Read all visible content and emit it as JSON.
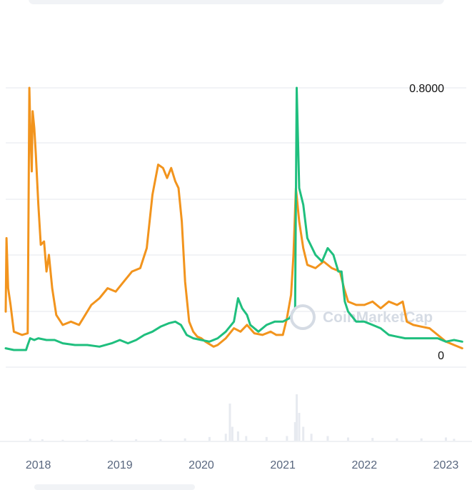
{
  "chart_data": {
    "type": "line",
    "title": "",
    "xlabel": "",
    "ylabel": "",
    "ylim": [
      0,
      0.8
    ],
    "grid": true,
    "legend": "none",
    "watermark": "CoinMarketCap",
    "y_tick_labels": [
      {
        "value": 0.8,
        "label": "0.8000"
      },
      {
        "value": 0,
        "label": "0"
      }
    ],
    "x_tick_labels": [
      {
        "x": 2018.0,
        "label": "2018"
      },
      {
        "x": 2019.0,
        "label": "2019"
      },
      {
        "x": 2020.0,
        "label": "2020"
      },
      {
        "x": 2021.0,
        "label": "2021"
      },
      {
        "x": 2022.0,
        "label": "2022"
      },
      {
        "x": 2023.0,
        "label": "2023"
      }
    ],
    "series": [
      {
        "color": "#f2941d",
        "points": [
          [
            2017.6,
            0.13
          ],
          [
            2017.61,
            0.35
          ],
          [
            2017.63,
            0.2
          ],
          [
            2017.66,
            0.15
          ],
          [
            2017.7,
            0.07
          ],
          [
            2017.8,
            0.06
          ],
          [
            2017.87,
            0.065
          ],
          [
            2017.89,
            0.8
          ],
          [
            2017.9,
            0.7
          ],
          [
            2017.92,
            0.55
          ],
          [
            2017.93,
            0.73
          ],
          [
            2017.95,
            0.68
          ],
          [
            2017.97,
            0.6
          ],
          [
            2018.0,
            0.45
          ],
          [
            2018.03,
            0.33
          ],
          [
            2018.07,
            0.34
          ],
          [
            2018.1,
            0.25
          ],
          [
            2018.13,
            0.3
          ],
          [
            2018.17,
            0.2
          ],
          [
            2018.22,
            0.12
          ],
          [
            2018.3,
            0.09
          ],
          [
            2018.4,
            0.1
          ],
          [
            2018.5,
            0.09
          ],
          [
            2018.55,
            0.11
          ],
          [
            2018.65,
            0.15
          ],
          [
            2018.75,
            0.17
          ],
          [
            2018.85,
            0.2
          ],
          [
            2018.95,
            0.19
          ],
          [
            2019.05,
            0.22
          ],
          [
            2019.15,
            0.25
          ],
          [
            2019.25,
            0.26
          ],
          [
            2019.33,
            0.32
          ],
          [
            2019.4,
            0.48
          ],
          [
            2019.47,
            0.57
          ],
          [
            2019.53,
            0.56
          ],
          [
            2019.58,
            0.53
          ],
          [
            2019.63,
            0.56
          ],
          [
            2019.68,
            0.52
          ],
          [
            2019.72,
            0.5
          ],
          [
            2019.76,
            0.4
          ],
          [
            2019.8,
            0.22
          ],
          [
            2019.85,
            0.1
          ],
          [
            2019.9,
            0.07
          ],
          [
            2019.95,
            0.055
          ],
          [
            2020.0,
            0.05
          ],
          [
            2020.05,
            0.04
          ],
          [
            2020.15,
            0.025
          ],
          [
            2020.2,
            0.03
          ],
          [
            2020.3,
            0.05
          ],
          [
            2020.4,
            0.08
          ],
          [
            2020.48,
            0.07
          ],
          [
            2020.56,
            0.09
          ],
          [
            2020.65,
            0.065
          ],
          [
            2020.75,
            0.06
          ],
          [
            2020.85,
            0.07
          ],
          [
            2020.92,
            0.06
          ],
          [
            2021.0,
            0.06
          ],
          [
            2021.05,
            0.11
          ],
          [
            2021.1,
            0.18
          ],
          [
            2021.13,
            0.3
          ],
          [
            2021.16,
            0.5
          ],
          [
            2021.2,
            0.4
          ],
          [
            2021.25,
            0.32
          ],
          [
            2021.3,
            0.27
          ],
          [
            2021.4,
            0.26
          ],
          [
            2021.5,
            0.28
          ],
          [
            2021.6,
            0.26
          ],
          [
            2021.7,
            0.25
          ],
          [
            2021.75,
            0.2
          ],
          [
            2021.8,
            0.16
          ],
          [
            2021.9,
            0.15
          ],
          [
            2022.0,
            0.15
          ],
          [
            2022.1,
            0.16
          ],
          [
            2022.2,
            0.14
          ],
          [
            2022.3,
            0.16
          ],
          [
            2022.4,
            0.15
          ],
          [
            2022.47,
            0.16
          ],
          [
            2022.52,
            0.1
          ],
          [
            2022.6,
            0.09
          ],
          [
            2022.7,
            0.085
          ],
          [
            2022.8,
            0.08
          ],
          [
            2022.9,
            0.06
          ],
          [
            2023.0,
            0.04
          ],
          [
            2023.1,
            0.03
          ],
          [
            2023.2,
            0.02
          ]
        ]
      },
      {
        "color": "#1fbf7e",
        "points": [
          [
            2017.6,
            0.02
          ],
          [
            2017.7,
            0.015
          ],
          [
            2017.85,
            0.015
          ],
          [
            2017.87,
            0.03
          ],
          [
            2017.9,
            0.05
          ],
          [
            2017.95,
            0.045
          ],
          [
            2018.0,
            0.05
          ],
          [
            2018.1,
            0.045
          ],
          [
            2018.2,
            0.045
          ],
          [
            2018.3,
            0.035
          ],
          [
            2018.45,
            0.03
          ],
          [
            2018.6,
            0.03
          ],
          [
            2018.75,
            0.025
          ],
          [
            2018.9,
            0.035
          ],
          [
            2019.0,
            0.045
          ],
          [
            2019.1,
            0.035
          ],
          [
            2019.2,
            0.045
          ],
          [
            2019.3,
            0.06
          ],
          [
            2019.4,
            0.07
          ],
          [
            2019.5,
            0.085
          ],
          [
            2019.6,
            0.095
          ],
          [
            2019.68,
            0.1
          ],
          [
            2019.75,
            0.09
          ],
          [
            2019.82,
            0.06
          ],
          [
            2019.9,
            0.05
          ],
          [
            2020.0,
            0.045
          ],
          [
            2020.1,
            0.04
          ],
          [
            2020.2,
            0.05
          ],
          [
            2020.3,
            0.07
          ],
          [
            2020.4,
            0.1
          ],
          [
            2020.45,
            0.17
          ],
          [
            2020.5,
            0.14
          ],
          [
            2020.56,
            0.12
          ],
          [
            2020.6,
            0.09
          ],
          [
            2020.7,
            0.07
          ],
          [
            2020.8,
            0.09
          ],
          [
            2020.9,
            0.1
          ],
          [
            2021.0,
            0.1
          ],
          [
            2021.08,
            0.11
          ],
          [
            2021.15,
            0.14
          ],
          [
            2021.17,
            0.8
          ],
          [
            2021.2,
            0.5
          ],
          [
            2021.25,
            0.45
          ],
          [
            2021.3,
            0.35
          ],
          [
            2021.4,
            0.3
          ],
          [
            2021.48,
            0.28
          ],
          [
            2021.55,
            0.32
          ],
          [
            2021.62,
            0.3
          ],
          [
            2021.68,
            0.25
          ],
          [
            2021.72,
            0.25
          ],
          [
            2021.76,
            0.16
          ],
          [
            2021.8,
            0.13
          ],
          [
            2021.9,
            0.1
          ],
          [
            2022.0,
            0.1
          ],
          [
            2022.1,
            0.09
          ],
          [
            2022.2,
            0.08
          ],
          [
            2022.3,
            0.06
          ],
          [
            2022.4,
            0.055
          ],
          [
            2022.5,
            0.05
          ],
          [
            2022.6,
            0.05
          ],
          [
            2022.7,
            0.05
          ],
          [
            2022.8,
            0.05
          ],
          [
            2022.9,
            0.05
          ],
          [
            2023.0,
            0.04
          ],
          [
            2023.1,
            0.045
          ],
          [
            2023.2,
            0.04
          ]
        ]
      }
    ],
    "volume": {
      "color": "#e7eaf0",
      "bars": [
        [
          2017.9,
          0.04
        ],
        [
          2018.05,
          0.03
        ],
        [
          2018.3,
          0.02
        ],
        [
          2018.6,
          0.02
        ],
        [
          2018.9,
          0.02
        ],
        [
          2019.2,
          0.03
        ],
        [
          2019.5,
          0.03
        ],
        [
          2019.8,
          0.05
        ],
        [
          2020.1,
          0.08
        ],
        [
          2020.3,
          0.15
        ],
        [
          2020.35,
          0.8
        ],
        [
          2020.38,
          0.3
        ],
        [
          2020.45,
          0.2
        ],
        [
          2020.55,
          0.1
        ],
        [
          2020.8,
          0.08
        ],
        [
          2021.05,
          0.1
        ],
        [
          2021.15,
          0.4
        ],
        [
          2021.17,
          1.0
        ],
        [
          2021.2,
          0.6
        ],
        [
          2021.25,
          0.3
        ],
        [
          2021.35,
          0.15
        ],
        [
          2021.55,
          0.1
        ],
        [
          2021.8,
          0.07
        ],
        [
          2022.1,
          0.06
        ],
        [
          2022.4,
          0.05
        ],
        [
          2022.7,
          0.05
        ],
        [
          2023.0,
          0.07
        ],
        [
          2023.1,
          0.04
        ]
      ]
    }
  }
}
